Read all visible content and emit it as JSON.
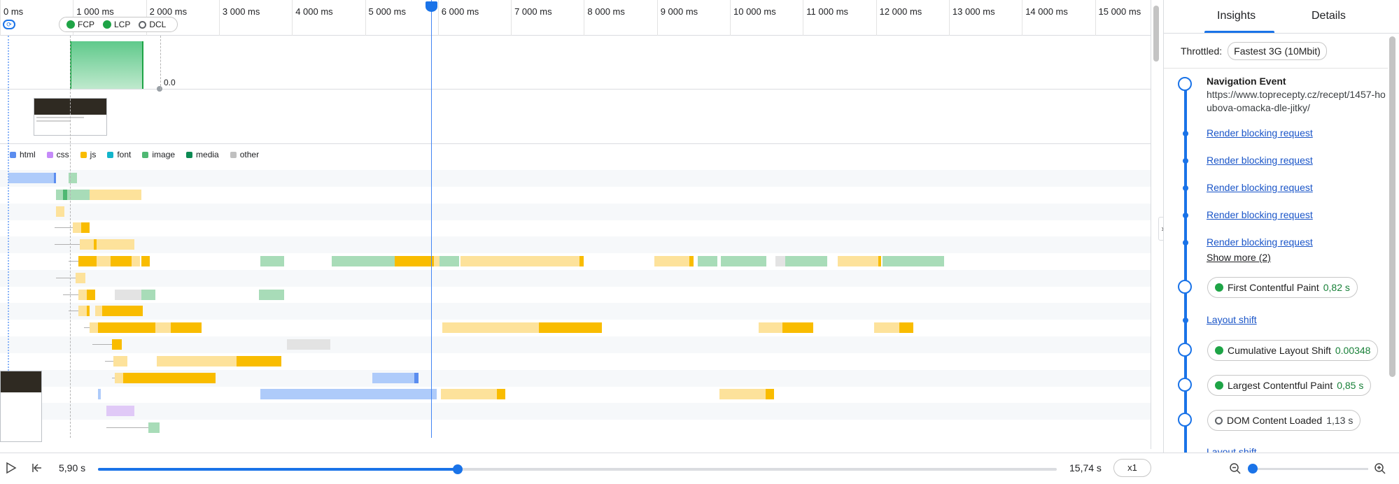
{
  "ruler": {
    "ticks": [
      "0 ms",
      "1 000 ms",
      "2 000 ms",
      "3 000 ms",
      "4 000 ms",
      "5 000 ms",
      "6 000 ms",
      "7 000 ms",
      "8 000 ms",
      "9 000 ms",
      "10 000 ms",
      "11 000 ms",
      "12 000 ms",
      "13 000 ms",
      "14 000 ms",
      "15 000 ms"
    ]
  },
  "markers": {
    "fcp": "FCP",
    "lcp": "LCP",
    "dcl": "DCL"
  },
  "network": {
    "value": "0.0"
  },
  "legend": [
    {
      "label": "html",
      "color": "#5b8def"
    },
    {
      "label": "css",
      "color": "#c58af9"
    },
    {
      "label": "js",
      "color": "#f9bc00"
    },
    {
      "label": "font",
      "color": "#12b5cb"
    },
    {
      "label": "image",
      "color": "#4fb873"
    },
    {
      "label": "media",
      "color": "#0c8a53"
    },
    {
      "label": "other",
      "color": "#c0c0c0"
    }
  ],
  "colors": {
    "html": "#5b8def",
    "html_light": "#aecbfa",
    "js": "#f9bc00",
    "js_light": "#fde29b",
    "image": "#4fb873",
    "image_light": "#a8dcb8",
    "css_light": "#e0c9f7",
    "other_light": "#e3e3e3",
    "accent": "#1a73e8"
  },
  "playback": {
    "current": "5,90 s",
    "total": "15,74 s",
    "speed": "x1",
    "progress_fraction": 0.375
  },
  "sidebar": {
    "tabs": {
      "insights": "Insights",
      "details": "Details"
    },
    "throttled_label": "Throttled:",
    "throttled_value": "Fastest 3G (10Mbit)",
    "nav_title": "Navigation Event",
    "nav_url": "https://www.toprecepty.cz/recept/1457-houbova-omacka-dle-jitky/",
    "links": [
      "Render blocking request",
      "Render blocking request",
      "Render blocking request",
      "Render blocking request",
      "Render blocking request"
    ],
    "show_more": "Show more (2)",
    "fcp_label": "First Contentful Paint",
    "fcp_value": "0,82 s",
    "layout_shift": "Layout shift",
    "cls_label": "Cumulative Layout Shift",
    "cls_value": "0.00348",
    "lcp_label": "Largest Contentful Paint",
    "lcp_value": "0,85 s",
    "dcl_label": "DOM Content Loaded",
    "dcl_value": "1,13 s",
    "cut_link": "Layout shift"
  }
}
